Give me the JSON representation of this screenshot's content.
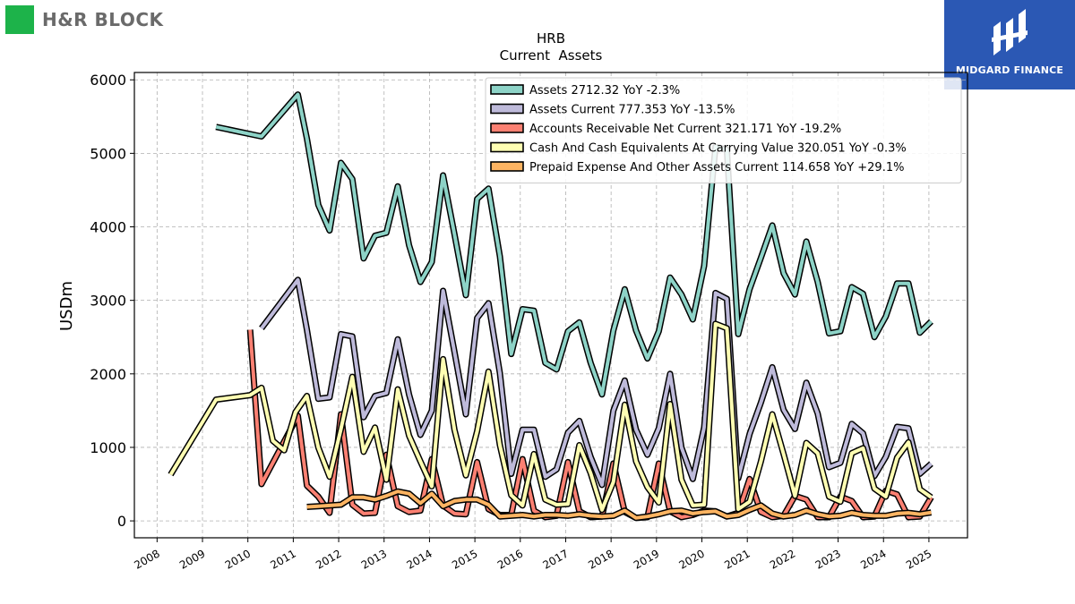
{
  "branding": {
    "left_logo_text": "H&R BLOCK",
    "right_logo_text": "MIDGARD FINANCE",
    "left_logo_color": "#1db34a",
    "right_logo_bg": "#2b58b4"
  },
  "chart_data": {
    "type": "line",
    "title": "HRB",
    "subtitle": "Current  Assets",
    "ylabel": "USDm",
    "xlabel": "",
    "xlim": [
      2007.5,
      2025.85
    ],
    "ylim": [
      -230,
      6100
    ],
    "x_ticks": [
      2008,
      2009,
      2010,
      2011,
      2012,
      2013,
      2014,
      2015,
      2016,
      2017,
      2018,
      2019,
      2020,
      2021,
      2022,
      2023,
      2024,
      2025
    ],
    "y_ticks": [
      0,
      1000,
      2000,
      3000,
      4000,
      5000,
      6000
    ],
    "grid": true,
    "legend_position": "top-right",
    "series": [
      {
        "name": "Assets",
        "legend": "Assets  2712.32 YoY -2.3%",
        "color": "#8dd3c7",
        "x": [
          2009.3,
          2010.3,
          2011.1,
          2011.3,
          2011.55,
          2011.8,
          2012.05,
          2012.3,
          2012.55,
          2012.8,
          2013.05,
          2013.3,
          2013.55,
          2013.8,
          2014.05,
          2014.3,
          2014.55,
          2014.8,
          2015.05,
          2015.3,
          2015.55,
          2015.8,
          2016.05,
          2016.3,
          2016.55,
          2016.8,
          2017.05,
          2017.3,
          2017.55,
          2017.8,
          2018.05,
          2018.3,
          2018.55,
          2018.8,
          2019.05,
          2019.3,
          2019.55,
          2019.8,
          2020.05,
          2020.3,
          2020.55,
          2020.8,
          2021.05,
          2021.3,
          2021.55,
          2021.8,
          2022.05,
          2022.3,
          2022.55,
          2022.8,
          2023.05,
          2023.3,
          2023.55,
          2023.8,
          2024.05,
          2024.3,
          2024.55,
          2024.8,
          2025.05
        ],
        "values": [
          5360,
          5230,
          5800,
          5200,
          4300,
          3950,
          4870,
          4650,
          3570,
          3880,
          3920,
          4550,
          3750,
          3250,
          3520,
          4700,
          3900,
          3070,
          4380,
          4520,
          3600,
          2270,
          2880,
          2860,
          2150,
          2060,
          2580,
          2700,
          2150,
          1720,
          2590,
          3150,
          2590,
          2210,
          2580,
          3310,
          3080,
          2740,
          3470,
          5090,
          5050,
          2540,
          3150,
          3580,
          4020,
          3370,
          3080,
          3800,
          3250,
          2550,
          2580,
          3180,
          3090,
          2500,
          2780,
          3230,
          3230,
          2560,
          2712
        ]
      },
      {
        "name": "Assets Current",
        "legend": "Assets Current  777.353 YoY -13.5%",
        "color": "#bebada",
        "x": [
          2010.3,
          2011.1,
          2011.3,
          2011.55,
          2011.8,
          2012.05,
          2012.3,
          2012.55,
          2012.8,
          2013.05,
          2013.3,
          2013.55,
          2013.8,
          2014.05,
          2014.3,
          2014.55,
          2014.8,
          2015.05,
          2015.3,
          2015.55,
          2015.8,
          2016.05,
          2016.3,
          2016.55,
          2016.8,
          2017.05,
          2017.3,
          2017.55,
          2017.8,
          2018.05,
          2018.3,
          2018.55,
          2018.8,
          2019.05,
          2019.3,
          2019.55,
          2019.8,
          2020.05,
          2020.3,
          2020.55,
          2020.8,
          2021.05,
          2021.3,
          2021.55,
          2021.8,
          2022.05,
          2022.3,
          2022.55,
          2022.8,
          2023.05,
          2023.3,
          2023.55,
          2023.8,
          2024.05,
          2024.3,
          2024.55,
          2024.8,
          2025.05
        ],
        "values": [
          2620,
          3280,
          2600,
          1660,
          1680,
          2540,
          2510,
          1410,
          1700,
          1740,
          2470,
          1720,
          1170,
          1500,
          3130,
          2300,
          1450,
          2760,
          2960,
          2010,
          640,
          1240,
          1240,
          600,
          700,
          1200,
          1360,
          870,
          490,
          1500,
          1910,
          1240,
          900,
          1260,
          2000,
          1000,
          570,
          1270,
          3100,
          3020,
          580,
          1180,
          1610,
          2090,
          1510,
          1250,
          1880,
          1460,
          730,
          790,
          1320,
          1190,
          610,
          870,
          1280,
          1260,
          640,
          777
        ]
      },
      {
        "name": "Accounts Receivable Net Current",
        "legend": "Accounts Receivable Net Current  321.171 YoY -19.2%",
        "color": "#fb8072",
        "x": [
          2010.05,
          2010.3,
          2011.1,
          2011.3,
          2011.55,
          2011.8,
          2012.05,
          2012.3,
          2012.55,
          2012.8,
          2013.05,
          2013.3,
          2013.55,
          2013.8,
          2014.05,
          2014.3,
          2014.55,
          2014.8,
          2015.05,
          2015.3,
          2015.55,
          2015.8,
          2016.05,
          2016.3,
          2016.55,
          2016.8,
          2017.05,
          2017.3,
          2017.55,
          2017.8,
          2018.05,
          2018.3,
          2018.55,
          2018.8,
          2019.05,
          2019.3,
          2019.55,
          2019.8,
          2020.05,
          2020.3,
          2020.55,
          2020.8,
          2021.05,
          2021.3,
          2021.55,
          2021.8,
          2022.05,
          2022.3,
          2022.55,
          2022.8,
          2023.05,
          2023.3,
          2023.55,
          2023.8,
          2024.05,
          2024.3,
          2024.55,
          2024.8,
          2025.05
        ],
        "values": [
          2600,
          500,
          1430,
          480,
          330,
          110,
          1450,
          220,
          100,
          110,
          900,
          200,
          120,
          140,
          840,
          210,
          100,
          90,
          800,
          160,
          80,
          80,
          840,
          140,
          50,
          70,
          800,
          130,
          50,
          60,
          780,
          120,
          40,
          50,
          780,
          130,
          50,
          80,
          140,
          130,
          60,
          110,
          570,
          120,
          50,
          70,
          340,
          290,
          50,
          50,
          330,
          270,
          50,
          60,
          410,
          360,
          50,
          60,
          321
        ]
      },
      {
        "name": "Cash And Cash Equivalents At Carrying Value",
        "legend": "Cash And Cash Equivalents At Carrying Value  320.051 YoY -0.3%",
        "color": "#ffffb3",
        "x": [
          2008.3,
          2009.3,
          2010.05,
          2010.3,
          2010.55,
          2010.8,
          2011.05,
          2011.3,
          2011.55,
          2011.8,
          2012.05,
          2012.3,
          2012.55,
          2012.8,
          2013.05,
          2013.3,
          2013.55,
          2013.8,
          2014.05,
          2014.3,
          2014.55,
          2014.8,
          2015.05,
          2015.3,
          2015.55,
          2015.8,
          2016.05,
          2016.3,
          2016.55,
          2016.8,
          2017.05,
          2017.3,
          2017.55,
          2017.8,
          2018.05,
          2018.3,
          2018.55,
          2018.8,
          2019.05,
          2019.3,
          2019.55,
          2019.8,
          2020.05,
          2020.3,
          2020.55,
          2020.8,
          2021.05,
          2021.3,
          2021.55,
          2021.8,
          2022.05,
          2022.3,
          2022.55,
          2022.8,
          2023.05,
          2023.3,
          2023.55,
          2023.8,
          2024.05,
          2024.3,
          2024.55,
          2024.8,
          2025.05
        ],
        "values": [
          630,
          1650,
          1710,
          1810,
          1090,
          960,
          1480,
          1700,
          1000,
          600,
          1250,
          1960,
          940,
          1270,
          560,
          1790,
          1160,
          810,
          470,
          2200,
          1240,
          620,
          1220,
          2030,
          1030,
          350,
          210,
          910,
          290,
          220,
          230,
          1030,
          650,
          150,
          530,
          1580,
          810,
          460,
          250,
          1590,
          560,
          210,
          220,
          2680,
          2620,
          160,
          260,
          810,
          1450,
          910,
          340,
          1060,
          920,
          330,
          260,
          920,
          990,
          440,
          330,
          860,
          1070,
          430,
          320
        ]
      },
      {
        "name": "Prepaid Expense And Other Assets Current",
        "legend": "Prepaid Expense And Other Assets Current  114.658 YoY +29.1%",
        "color": "#fdb462",
        "x": [
          2011.3,
          2011.55,
          2011.8,
          2012.05,
          2012.3,
          2012.55,
          2012.8,
          2013.05,
          2013.3,
          2013.55,
          2013.8,
          2014.05,
          2014.3,
          2014.55,
          2014.8,
          2015.05,
          2015.3,
          2015.55,
          2015.8,
          2016.05,
          2016.3,
          2016.55,
          2016.8,
          2017.05,
          2017.3,
          2017.55,
          2017.8,
          2018.05,
          2018.3,
          2018.55,
          2018.8,
          2019.05,
          2019.3,
          2019.55,
          2019.8,
          2020.05,
          2020.3,
          2020.55,
          2020.8,
          2021.05,
          2021.3,
          2021.55,
          2021.8,
          2022.05,
          2022.3,
          2022.55,
          2022.8,
          2023.05,
          2023.3,
          2023.55,
          2023.8,
          2024.05,
          2024.3,
          2024.55,
          2024.8,
          2025.05
        ],
        "values": [
          190,
          200,
          210,
          220,
          320,
          320,
          290,
          340,
          400,
          370,
          240,
          370,
          200,
          270,
          290,
          290,
          220,
          60,
          70,
          80,
          60,
          80,
          80,
          70,
          90,
          70,
          60,
          70,
          140,
          40,
          60,
          90,
          130,
          140,
          100,
          120,
          130,
          60,
          80,
          150,
          210,
          100,
          60,
          80,
          140,
          90,
          60,
          70,
          110,
          80,
          70,
          70,
          100,
          110,
          90,
          115
        ]
      }
    ]
  }
}
